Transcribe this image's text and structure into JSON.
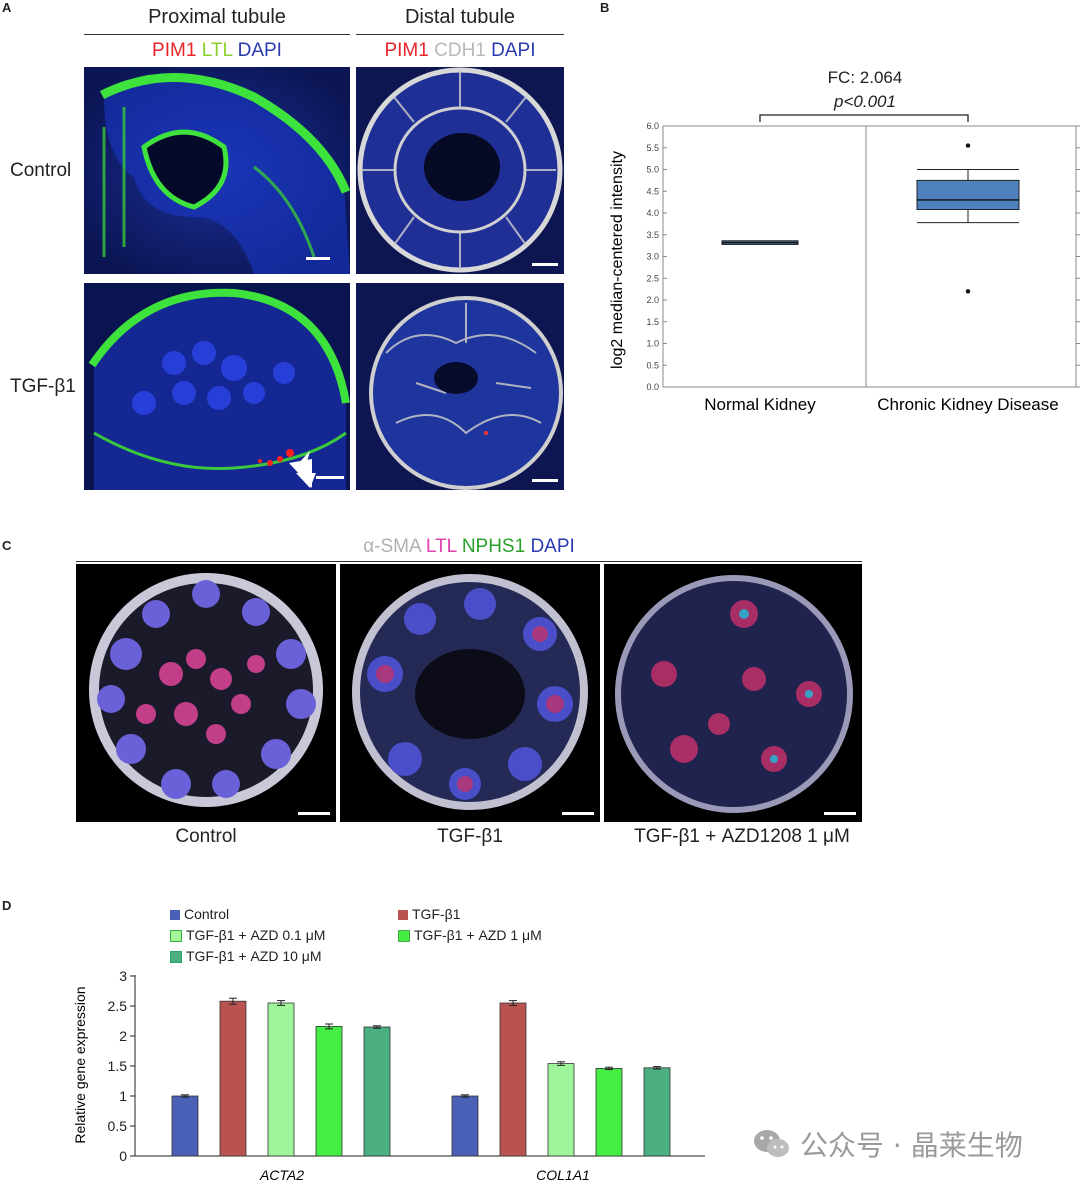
{
  "panel_a": {
    "letter": "A",
    "headers": {
      "proximal": "Proximal tubule",
      "distal": "Distal tubule"
    },
    "stains_proximal": [
      {
        "text": "PIM1",
        "color": "#e8232a"
      },
      {
        "text": "LTL",
        "color": "#8cd12a"
      },
      {
        "text": "DAPI",
        "color": "#2a3ab0"
      }
    ],
    "stains_distal": [
      {
        "text": "PIM1",
        "color": "#e8232a"
      },
      {
        "text": "CDH1",
        "color": "#b8b8b8"
      },
      {
        "text": "DAPI",
        "color": "#2a3ab0"
      }
    ],
    "rows": {
      "control": "Control",
      "tgf": "TGF-β1"
    }
  },
  "panel_b": {
    "letter": "B",
    "fc": "FC: 2.064",
    "pval": "p<0.001"
  },
  "panel_c": {
    "letter": "C",
    "stains": [
      {
        "text": "α-SMA",
        "color": "#b0b0b0"
      },
      {
        "text": "LTL",
        "color": "#e040b0"
      },
      {
        "text": "NPHS1",
        "color": "#2aa02a"
      },
      {
        "text": "DAPI",
        "color": "#2a3ab0"
      }
    ],
    "conditions": [
      "Control",
      "TGF-β1",
      "TGF-β1 + AZD1208 1 μM"
    ]
  },
  "panel_d": {
    "letter": "D"
  },
  "watermark": "公众号 · 晶莱生物",
  "chart_data": [
    {
      "type": "box",
      "title": "",
      "ylabel": "log2 median-centered intensity",
      "ylim": [
        0,
        6
      ],
      "yticks": [
        "0.0",
        "0.5",
        "1.0",
        "1.5",
        "2.0",
        "2.5",
        "3.0",
        "3.5",
        "4.0",
        "4.5",
        "5.0",
        "5.5",
        "6.0"
      ],
      "categories": [
        "Normal Kidney",
        "Chronic Kidney Disease"
      ],
      "boxes": [
        {
          "min": 3.28,
          "q1": 3.28,
          "median": 3.32,
          "q3": 3.36,
          "max": 3.36,
          "outliers": []
        },
        {
          "min": 3.78,
          "q1": 4.08,
          "median": 4.3,
          "q3": 4.75,
          "max": 5.0,
          "outliers": [
            5.55,
            2.2
          ]
        }
      ],
      "color": "#4f81bd"
    },
    {
      "type": "bar",
      "ylabel": "Relative gene expression",
      "ylim": [
        0,
        3
      ],
      "yticks": [
        "0",
        "0.5",
        "1",
        "1.5",
        "2",
        "2.5",
        "3"
      ],
      "categories": [
        "ACTA2",
        "COL1A1"
      ],
      "series": [
        {
          "name": "Control",
          "color": "#4a5fb6",
          "values": [
            1.0,
            1.0
          ],
          "errors": [
            0.02,
            0.02
          ]
        },
        {
          "name": "TGF-β1",
          "color": "#b85350",
          "values": [
            2.58,
            2.55
          ],
          "errors": [
            0.05,
            0.04
          ]
        },
        {
          "name": "TGF-β1 + AZD 0.1 μM",
          "color": "#9ef59a",
          "values": [
            2.55,
            1.54
          ],
          "errors": [
            0.04,
            0.03
          ]
        },
        {
          "name": "TGF-β1 + AZD 1 μM",
          "color": "#44ee44",
          "values": [
            2.16,
            1.46
          ],
          "errors": [
            0.04,
            0.02
          ]
        },
        {
          "name": "TGF-β1 + AZD 10 μM",
          "color": "#4caf82",
          "values": [
            2.15,
            1.47
          ],
          "errors": [
            0.02,
            0.02
          ]
        }
      ]
    }
  ]
}
